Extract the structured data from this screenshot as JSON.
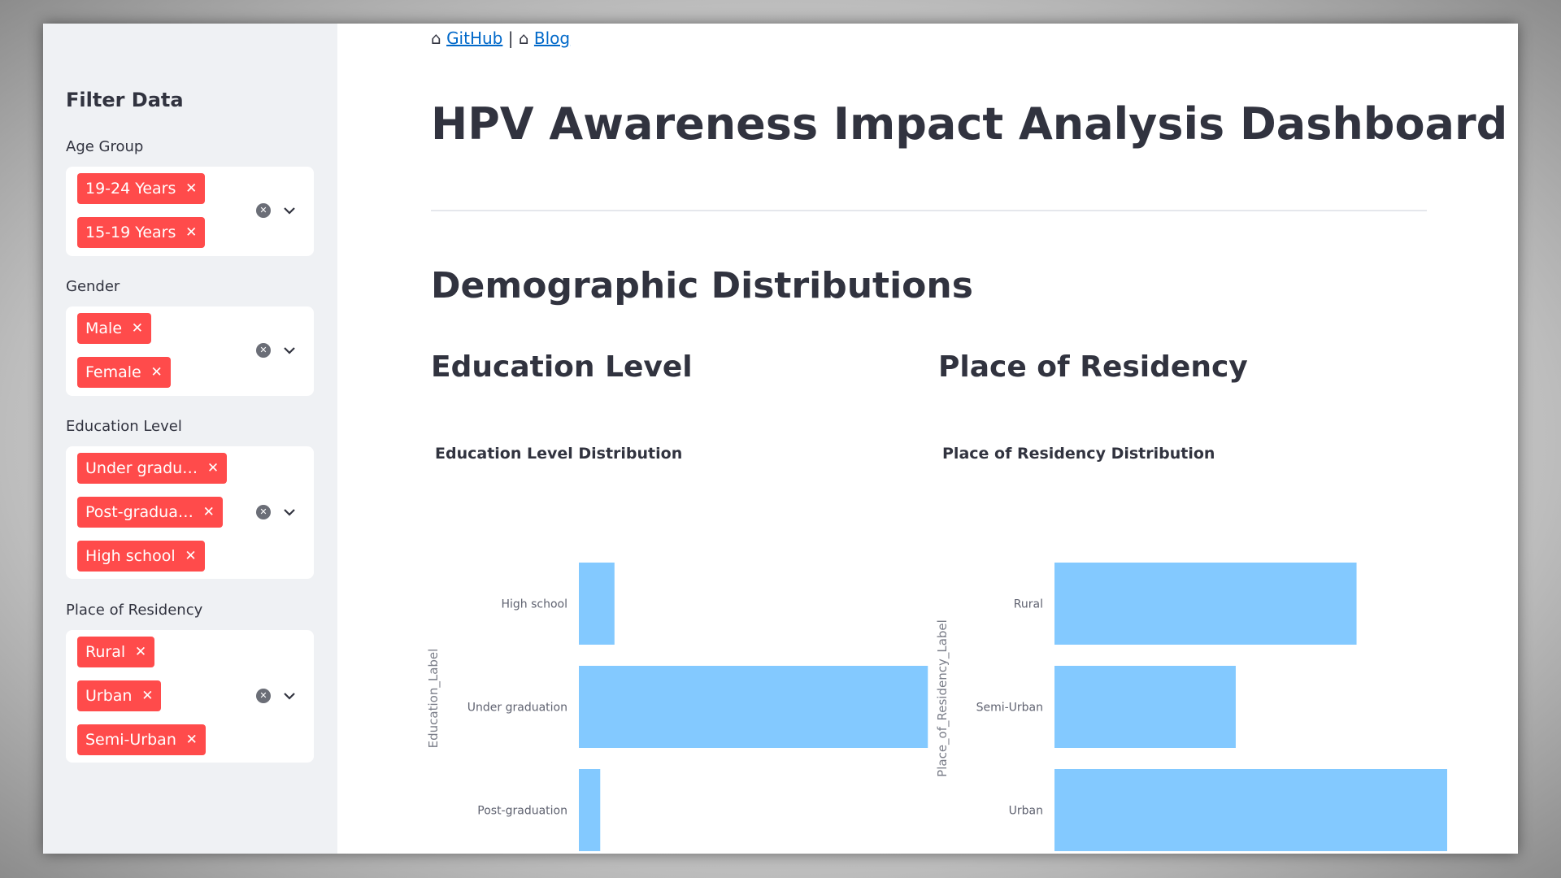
{
  "links": {
    "github_icon": "⌂",
    "github_label": "GitHub",
    "separator": "|",
    "blog_icon": "⌂",
    "blog_label": "Blog"
  },
  "sidebar": {
    "title": "Filter Data",
    "filters": [
      {
        "label": "Age Group",
        "chips": [
          "19-24 Years",
          "15-19 Years"
        ]
      },
      {
        "label": "Gender",
        "chips": [
          "Male",
          "Female"
        ]
      },
      {
        "label": "Education Level",
        "chips": [
          "Under gradu…",
          "Post-gradua…",
          "High school"
        ]
      },
      {
        "label": "Place of Residency",
        "chips": [
          "Rural",
          "Urban",
          "Semi-Urban"
        ]
      }
    ],
    "chip_remove_glyph": "✕",
    "clear_glyph": "✕"
  },
  "main": {
    "title": "HPV Awareness Impact Analysis Dashboard",
    "section_title": "Demographic Distributions",
    "left_subheader": "Education Level",
    "right_subheader": "Place of Residency"
  },
  "colors": {
    "chip": "#ff4b4b",
    "bar": "#83c9ff",
    "sidebar_bg": "#eff1f4"
  },
  "chart_data": [
    {
      "type": "bar",
      "orientation": "horizontal",
      "title": "Education Level Distribution",
      "ylabel": "Education_Label",
      "xlabel": "",
      "categories": [
        "High school",
        "Under graduation",
        "Post-graduation"
      ],
      "values": [
        5,
        49,
        3
      ],
      "xticks": [
        0,
        20,
        40
      ],
      "xlim": [
        0,
        50
      ]
    },
    {
      "type": "bar",
      "orientation": "horizontal",
      "title": "Place of Residency Distribution",
      "ylabel": "Place_of_Residency_Label",
      "xlabel": "",
      "categories": [
        "Rural",
        "Semi-Urban",
        "Urban"
      ],
      "values": [
        20,
        12,
        26
      ],
      "xticks": [
        0,
        5,
        10,
        15,
        20,
        25
      ],
      "xlim": [
        0,
        26
      ]
    }
  ]
}
